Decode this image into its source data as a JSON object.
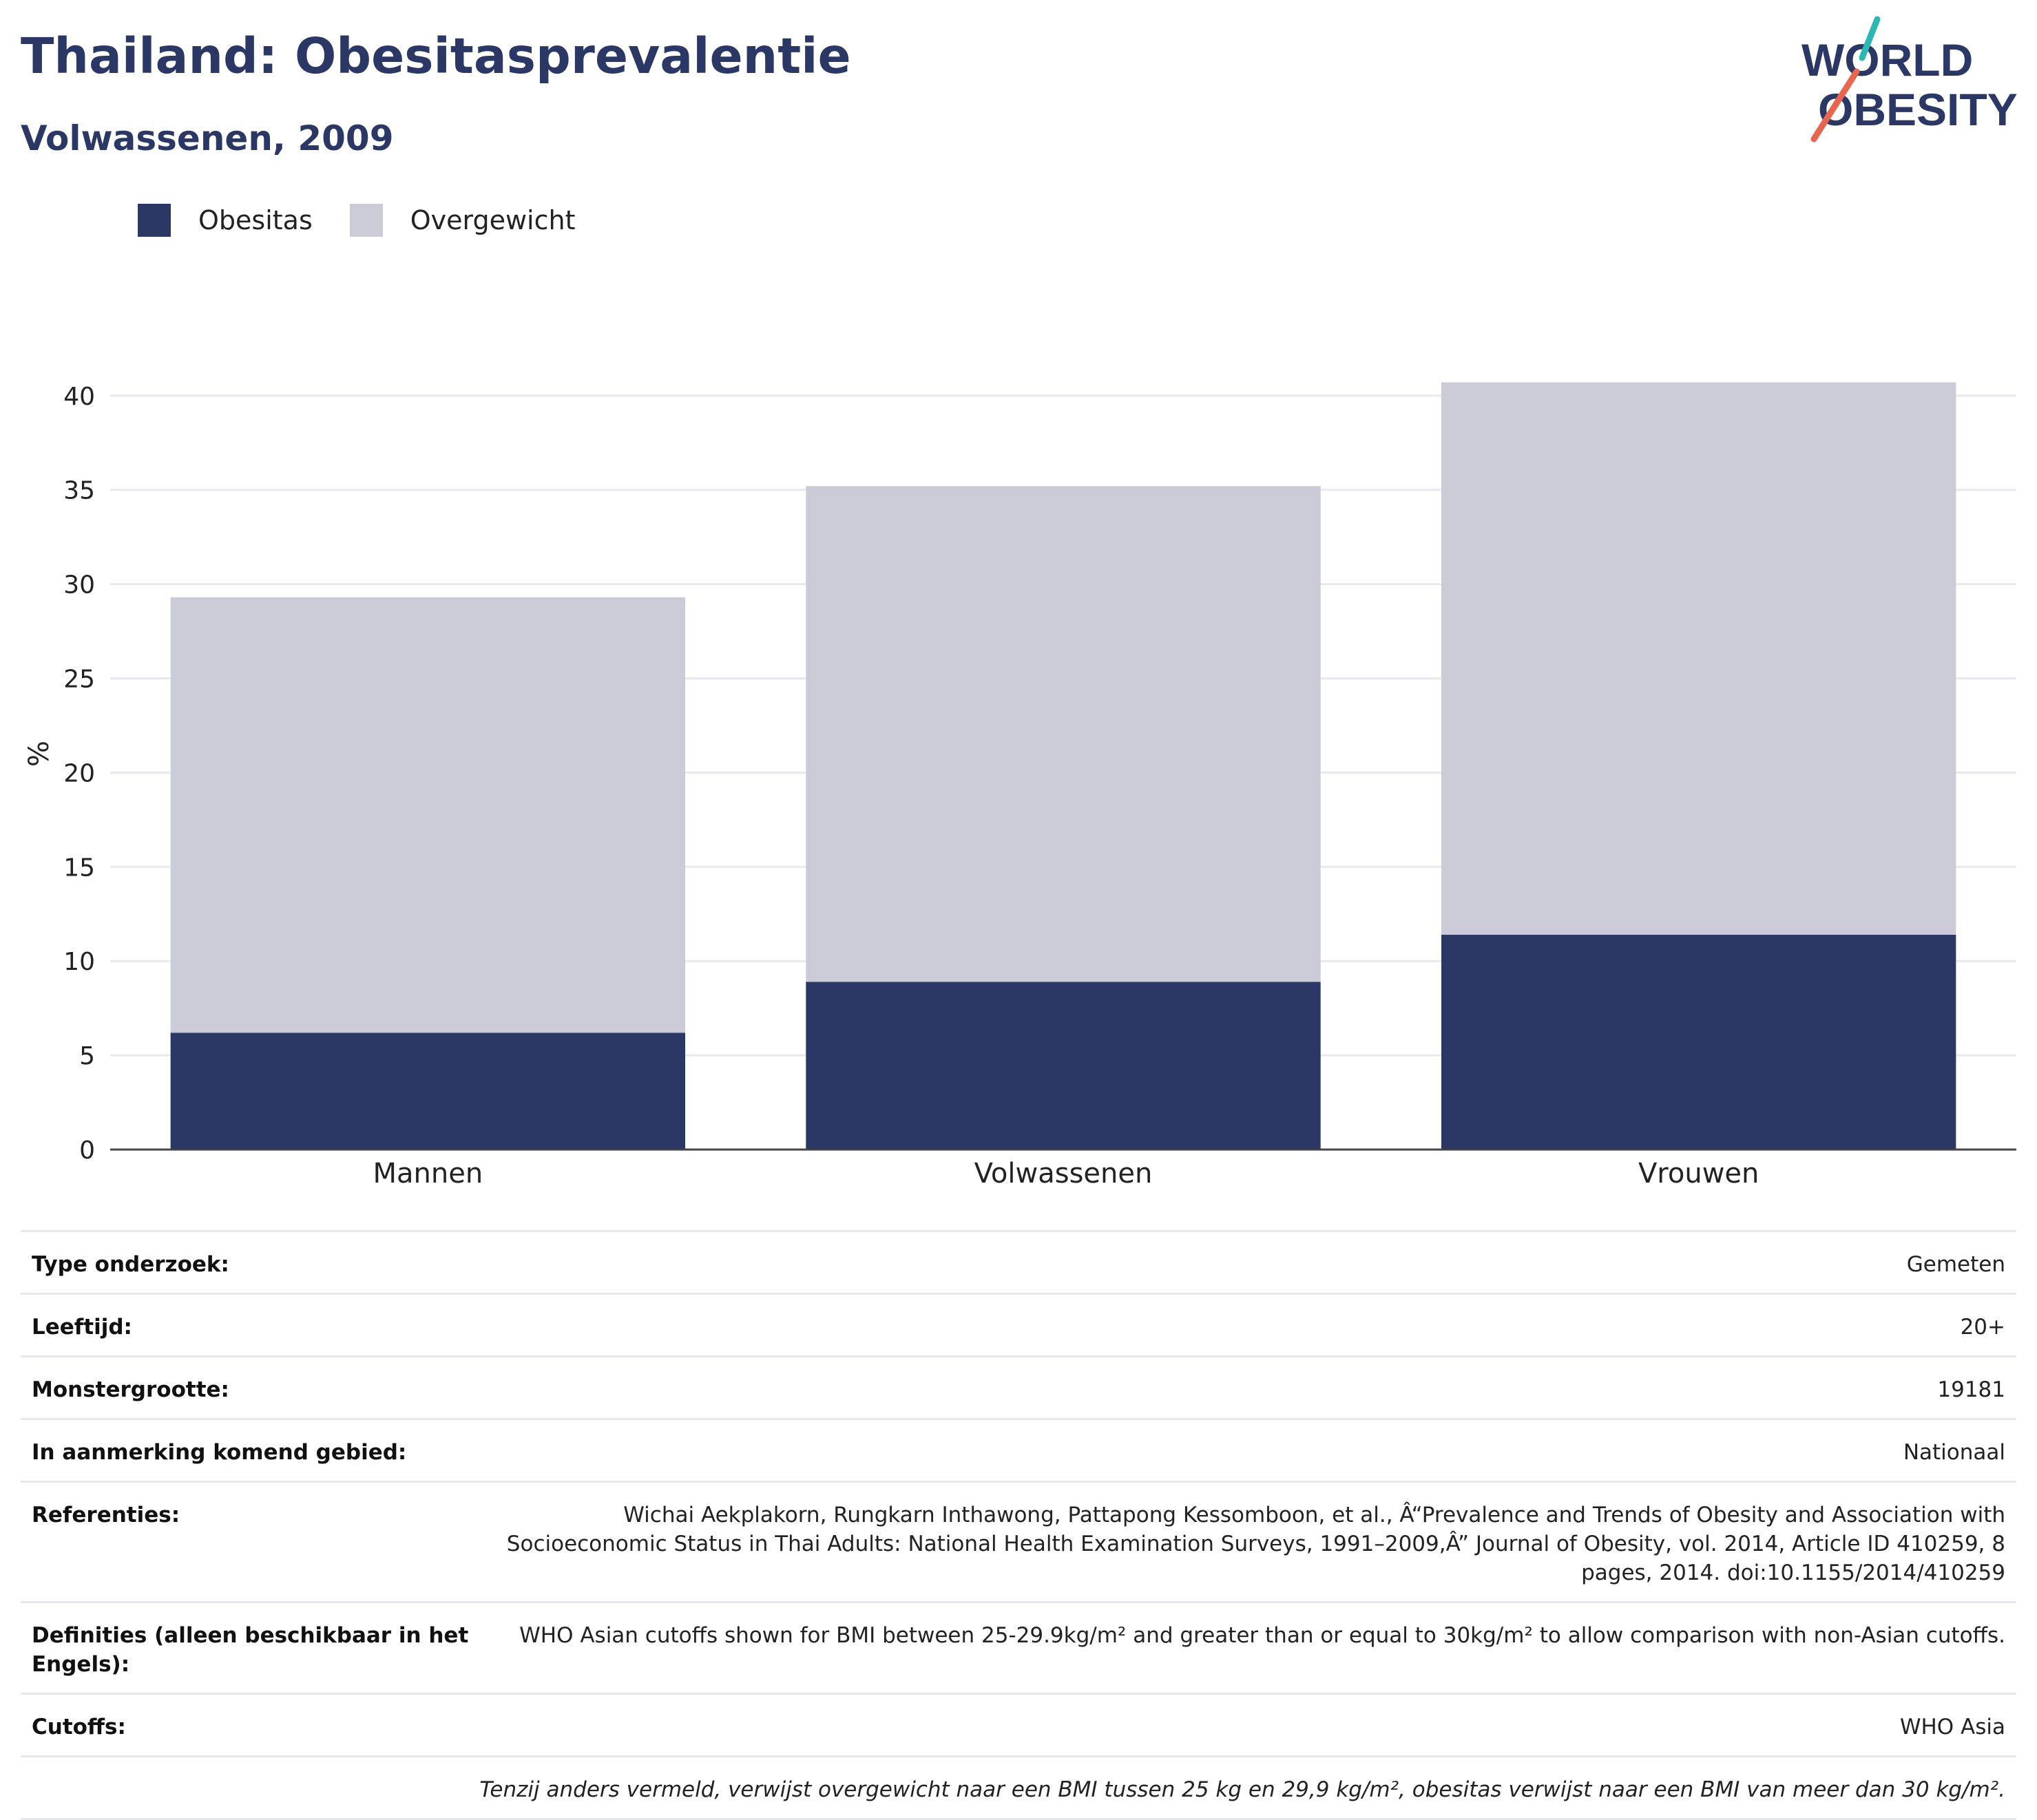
{
  "header": {
    "title": "Thailand: Obesitasprevalentie",
    "subtitle": "Volwassenen, 2009",
    "logo_line1": "WORLD",
    "logo_line2": "OBESITY"
  },
  "legend": [
    {
      "label": "Obesitas",
      "color": "#2b3765"
    },
    {
      "label": "Overgewicht",
      "color": "#cacbd7"
    }
  ],
  "chart_data": {
    "type": "bar",
    "stacked": true,
    "categories": [
      "Mannen",
      "Volwassenen",
      "Vrouwen"
    ],
    "series": [
      {
        "name": "Obesitas",
        "values": [
          6.2,
          8.9,
          11.4
        ],
        "color": "#2b3765"
      },
      {
        "name": "Overgewicht",
        "values": [
          23.1,
          26.3,
          29.3
        ],
        "color": "#cacbd7"
      }
    ],
    "ylabel": "%",
    "ylim": [
      0,
      42
    ],
    "yticks": [
      0,
      5,
      10,
      15,
      20,
      25,
      30,
      35,
      40
    ],
    "grid": true,
    "legend_position": "top-left"
  },
  "info": {
    "rows": [
      {
        "label": "Type onderzoek:",
        "value": "Gemeten"
      },
      {
        "label": "Leeftijd:",
        "value": "20+"
      },
      {
        "label": "Monstergrootte:",
        "value": "19181"
      },
      {
        "label": "In aanmerking komend gebied:",
        "value": "Nationaal"
      },
      {
        "label": "Referenties:",
        "value": "Wichai Aekplakorn, Rungkarn Inthawong, Pattapong Kessomboon, et al., Â“Prevalence and Trends of Obesity and Association with Socioeconomic Status in Thai Adults: National Health Examination Surveys, 1991–2009,Â” Journal of Obesity, vol. 2014, Article ID 410259, 8 pages, 2014. doi:10.1155/2014/410259"
      },
      {
        "label": "Definities (alleen beschikbaar in het Engels):",
        "value": "WHO Asian cutoffs shown for BMI between 25-29.9kg/m²  and greater than or equal to 30kg/m² to allow comparison with non-Asian cutoffs."
      },
      {
        "label": "Cutoffs:",
        "value": "WHO Asia"
      }
    ],
    "note": "Tenzij anders vermeld, verwijst overgewicht naar een BMI tussen 25 kg en 29,9 kg/m², obesitas verwijst naar een BMI van meer dan 30 kg/m²."
  }
}
